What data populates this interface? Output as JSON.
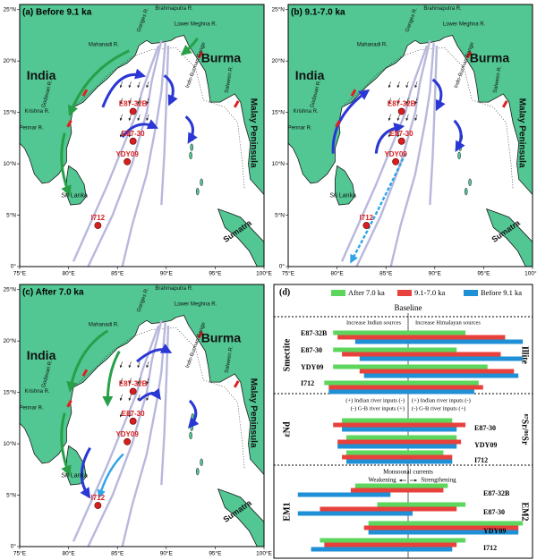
{
  "maps": {
    "panels": [
      {
        "title": "(a) Before 9.1 ka"
      },
      {
        "title": "(b) 9.1-7.0 ka"
      },
      {
        "title": "(c) After 7.0 ka"
      }
    ],
    "lon_ticks": [
      {
        "value": 75,
        "label": "75°E"
      },
      {
        "value": 80,
        "label": "80°E"
      },
      {
        "value": 85,
        "label": "85°E"
      },
      {
        "value": 90,
        "label": "90°E"
      },
      {
        "value": 95,
        "label": "95°E"
      },
      {
        "value": 100,
        "label": "100°E"
      }
    ],
    "lat_ticks": [
      {
        "value": 0,
        "label": "0°"
      },
      {
        "value": 5,
        "label": "5°N"
      },
      {
        "value": 10,
        "label": "10°N"
      },
      {
        "value": 15,
        "label": "15°N"
      },
      {
        "value": 20,
        "label": "20°N"
      },
      {
        "value": 25,
        "label": "25°N"
      }
    ],
    "places": [
      "India",
      "Burma",
      "Sri Lanka",
      "Malay Peninsula",
      "Sumatra",
      "Brahmaputra R.",
      "Ganges R.",
      "Lower Meghna R.",
      "Mahanadi R.",
      "Godavari R.",
      "Krishna R.",
      "Pennar R.",
      "Indo-Burman Range",
      "Salween R."
    ],
    "sites": [
      "E87-32B",
      "E87-30",
      "YDY09",
      "I712"
    ]
  },
  "chart_data": {
    "type": "range-bar",
    "label": "(d)",
    "baseline": "Baseline",
    "xlim": [
      -14,
      14
    ],
    "series": [
      {
        "name": "After 7.0 ka",
        "color": "#5cd65c"
      },
      {
        "name": "9.1-7.0 ka",
        "color": "#e8413c"
      },
      {
        "name": "Before 9.1 ka",
        "color": "#1f8fd6"
      }
    ],
    "sections": [
      {
        "left_label": "Smectite",
        "right_label": "Illite",
        "notes": [
          "Increase Indian sources",
          "Increase Himalayan sources"
        ],
        "categories": [
          "E87-32B",
          "E87-30",
          "YDY09",
          "I712"
        ],
        "bars": [
          {
            "low": [
              -8.5,
              -8.5,
              -8.5,
              -9.5
            ],
            "high": [
              6.5,
              5.5,
              9,
              8
            ]
          },
          {
            "low": [
              -8,
              -7.5,
              -5.5,
              -9
            ],
            "high": [
              11,
              10.5,
              12,
              8.5
            ]
          },
          {
            "low": [
              -6,
              -5.5,
              -5,
              -9
            ],
            "high": [
              13,
              13,
              12.5,
              7.5
            ]
          }
        ]
      },
      {
        "left_label": "εNd",
        "right_label": "⁸⁷Sr/⁸⁶Sr",
        "notes": [
          "(+) Indian river inputs (-)",
          "(+) Indian river inputs (-)",
          "(-) G-B river inputs (+)",
          "(-) G-B river inputs (+)"
        ],
        "categories": [
          "E87-30",
          "YDY09",
          "I712"
        ],
        "bars": [
          {
            "low": [
              -7.5,
              -7,
              -7
            ],
            "high": [
              5,
              5.5,
              4
            ]
          },
          {
            "low": [
              -8.5,
              -8,
              -7.5
            ],
            "high": [
              6.5,
              6,
              5
            ]
          },
          {
            "low": [
              -7.5,
              -8,
              -7
            ],
            "high": [
              5.5,
              5.5,
              5
            ]
          }
        ]
      },
      {
        "left_label": "EM1",
        "right_label": "EM2",
        "notes": [
          "Monsoonal currents",
          "Weakening",
          "Strengthening"
        ],
        "categories": [
          "E87-32B",
          "E87-30",
          "YDY09",
          "I712"
        ],
        "bars": [
          {
            "low": [
              -6,
              -3.5,
              -4.5,
              -10
            ],
            "high": [
              4.5,
              6.5,
              13,
              6.5
            ]
          },
          {
            "low": [
              -6.5,
              -10,
              -5,
              -9.5
            ],
            "high": [
              4,
              5.5,
              12.5,
              5.5
            ]
          },
          {
            "low": [
              -12.5,
              -12.5,
              -4.5,
              -11
            ],
            "high": [
              -2,
              0.5,
              12.5,
              5
            ]
          }
        ]
      }
    ]
  }
}
